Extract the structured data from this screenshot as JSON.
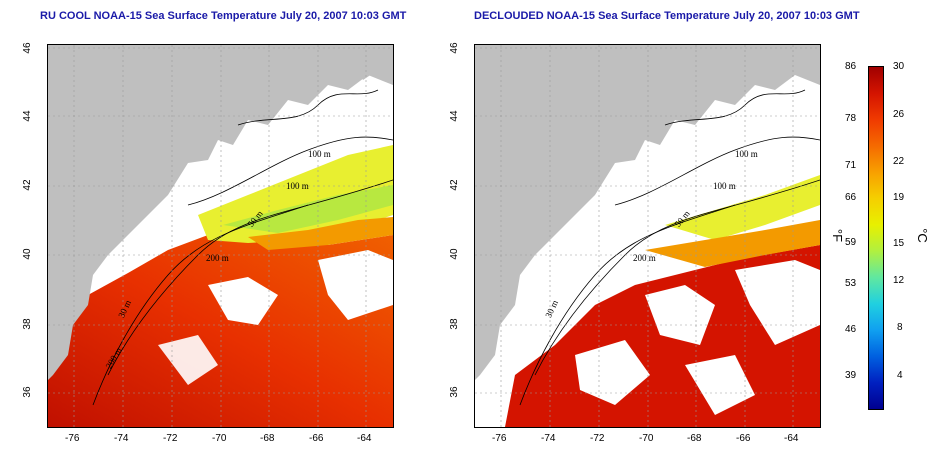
{
  "titles": {
    "left": "RU COOL NOAA-15 Sea Surface Temperature July 20, 2007 10:03 GMT",
    "right": "DECLOUDED NOAA-15 Sea Surface Temperature July 20, 2007 10:03 GMT"
  },
  "axes": {
    "x_ticks": [
      "-76",
      "-74",
      "-72",
      "-70",
      "-68",
      "-66",
      "-64"
    ],
    "y_ticks": [
      "46",
      "44",
      "42",
      "40",
      "38",
      "36"
    ]
  },
  "contour_labels": {
    "m100a": "100 m",
    "m100b": "100 m",
    "m50": "50 m",
    "m200": "200 m",
    "m30": "30 m",
    "m200b": "200 m"
  },
  "colorbar": {
    "fahrenheit_ticks": [
      "86",
      "78",
      "71",
      "66",
      "59",
      "53",
      "46",
      "39"
    ],
    "celsius_ticks": [
      "30",
      "26",
      "22",
      "19",
      "15",
      "12",
      "8",
      "4"
    ],
    "unit_f": "°F",
    "unit_c": "°C",
    "colors": [
      "#a00000",
      "#d41400",
      "#f03a00",
      "#f56a00",
      "#f8a000",
      "#f5cf00",
      "#e8f000",
      "#b0f040",
      "#60e8a0",
      "#20d0e0",
      "#10a0f0",
      "#0060e0",
      "#0020c0",
      "#000090"
    ]
  },
  "colors": {
    "land": "#bfbfbf",
    "cloud": "#ffffff",
    "title": "#1a1aa8"
  }
}
